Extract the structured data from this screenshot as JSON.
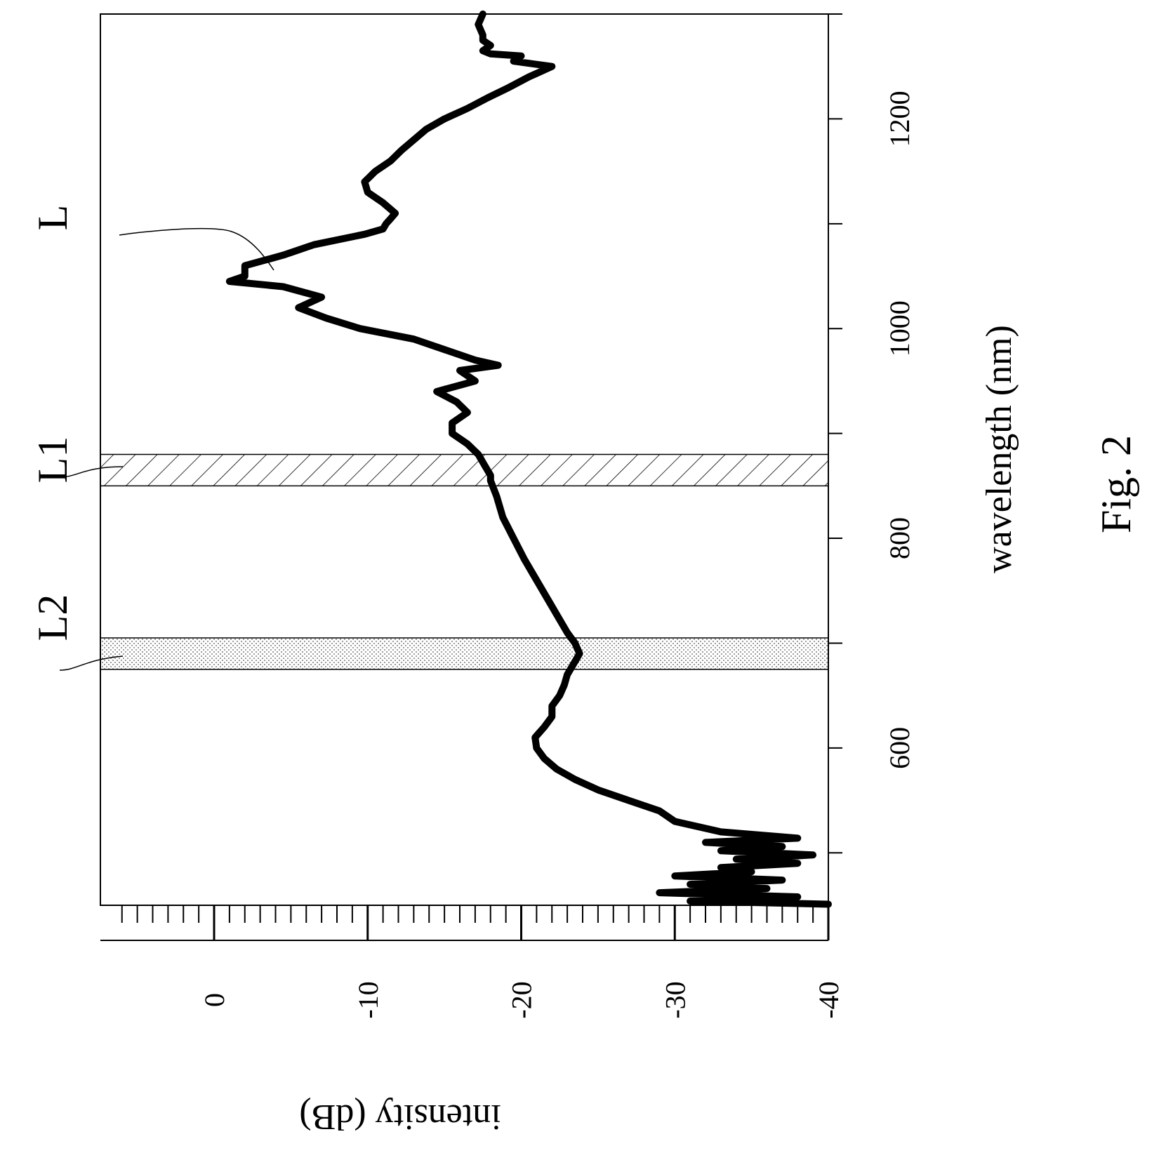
{
  "figure_label": "Fig. 2",
  "chart_data": {
    "type": "line",
    "orientation": "rotated-90-ccw",
    "title": "",
    "xlabel": "wavelength (nm)",
    "ylabel": "intensity (dB)",
    "xlim": [
      450,
      1300
    ],
    "ylim": [
      -40,
      7
    ],
    "x_ticks": [
      600,
      800,
      1000,
      1200
    ],
    "y_ticks": [
      0,
      -10,
      -20,
      -30,
      -40
    ],
    "grid": false,
    "series": [
      {
        "name": "L",
        "x": [
          451,
          454,
          458,
          462,
          466,
          470,
          474,
          478,
          482,
          486,
          490,
          494,
          498,
          502,
          506,
          510,
          514,
          520,
          530,
          540,
          550,
          560,
          570,
          580,
          590,
          600,
          610,
          620,
          630,
          640,
          650,
          660,
          670,
          680,
          690,
          700,
          710,
          720,
          740,
          760,
          780,
          800,
          820,
          840,
          855,
          860,
          870,
          880,
          890,
          900,
          910,
          920,
          930,
          940,
          950,
          960,
          965,
          970,
          980,
          990,
          1000,
          1010,
          1020,
          1030,
          1040,
          1045,
          1050,
          1060,
          1070,
          1080,
          1090,
          1095,
          1100,
          1105,
          1110,
          1120,
          1130,
          1140,
          1150,
          1160,
          1170,
          1180,
          1190,
          1200,
          1210,
          1220,
          1230,
          1240,
          1250,
          1255,
          1260,
          1262,
          1265,
          1270,
          1275,
          1280,
          1290,
          1300
        ],
        "y": [
          -40,
          -31,
          -38,
          -29,
          -36,
          -31,
          -37,
          -30,
          -35,
          -33,
          -38,
          -34,
          -39,
          -33,
          -37,
          -32,
          -38,
          -33,
          -30,
          -29,
          -27,
          -25,
          -23.5,
          -22.3,
          -21.5,
          -21,
          -20.9,
          -21.5,
          -22,
          -22,
          -22.5,
          -22.8,
          -23,
          -23.4,
          -23.8,
          -23.5,
          -23,
          -22.6,
          -21.8,
          -21,
          -20.2,
          -19.5,
          -18.8,
          -18.4,
          -18,
          -18,
          -17.6,
          -17.2,
          -16.5,
          -15.5,
          -15.5,
          -16.5,
          -15.8,
          -14.5,
          -17,
          -16,
          -18.5,
          -17,
          -15,
          -13,
          -9.5,
          -7.3,
          -5.5,
          -7,
          -4.5,
          -1,
          -2,
          -2,
          -4.5,
          -6.5,
          -9.8,
          -11,
          -11.2,
          -11.5,
          -11.8,
          -11,
          -10,
          -9.8,
          -10.5,
          -11.5,
          -12.2,
          -13,
          -13.8,
          -15,
          -16.5,
          -17.8,
          -19.2,
          -20.5,
          -22,
          -19.5,
          -20,
          -18,
          -17.5,
          -18,
          -17.5,
          -17.5,
          -17.2,
          -17.5
        ]
      }
    ],
    "bands": [
      {
        "label": "L1",
        "from": 850,
        "to": 880,
        "fill": "hatch"
      },
      {
        "label": "L2",
        "from": 675,
        "to": 705,
        "fill": "dots"
      }
    ]
  }
}
